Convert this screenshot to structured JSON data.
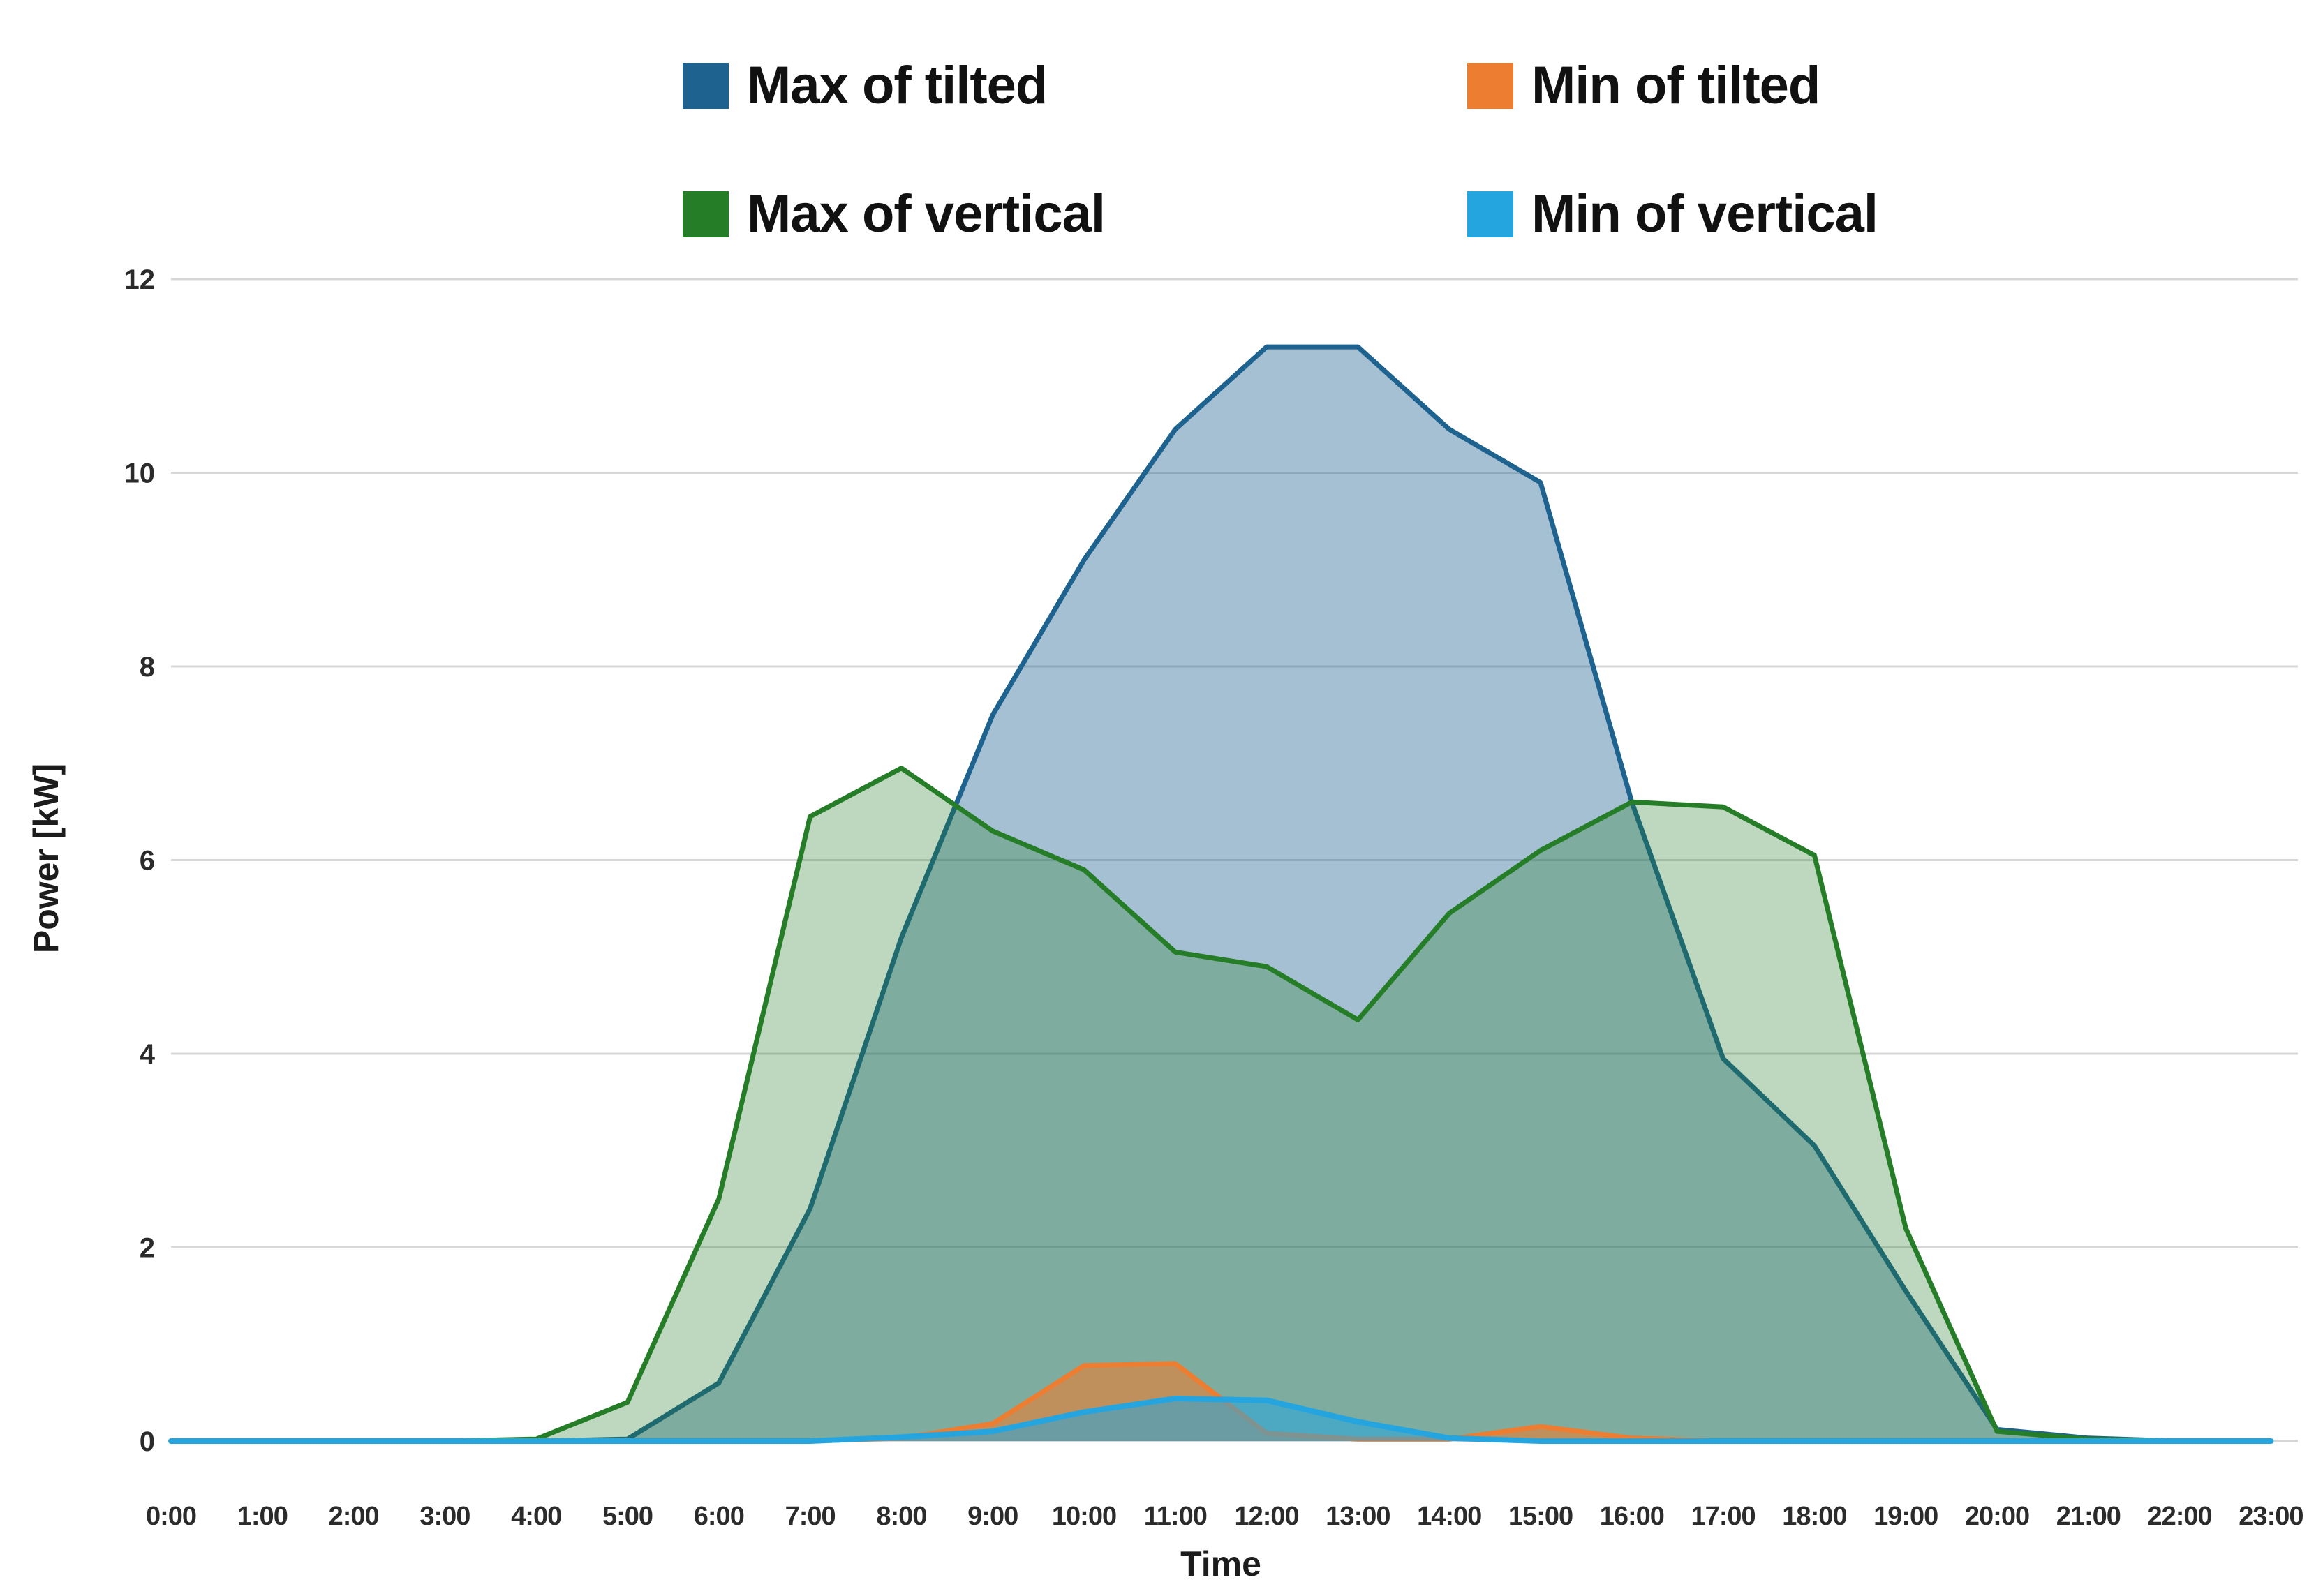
{
  "legend": {
    "items": [
      {
        "label": "Max of tilted",
        "color": "#1e628f"
      },
      {
        "label": "Min of tilted",
        "color": "#ed7d31"
      },
      {
        "label": "Max of vertical",
        "color": "#267d28"
      },
      {
        "label": "Min of vertical",
        "color": "#24a5e0"
      }
    ]
  },
  "chart_data": {
    "type": "area",
    "title": "",
    "xlabel": "Time",
    "ylabel": "Power [kW]",
    "x_categories": [
      "0:00",
      "1:00",
      "2:00",
      "3:00",
      "4:00",
      "5:00",
      "6:00",
      "7:00",
      "8:00",
      "9:00",
      "10:00",
      "11:00",
      "12:00",
      "13:00",
      "14:00",
      "15:00",
      "16:00",
      "17:00",
      "18:00",
      "19:00",
      "20:00",
      "21:00",
      "22:00",
      "23:00"
    ],
    "y_ticks": [
      0,
      2,
      4,
      6,
      8,
      10,
      12
    ],
    "ylim": [
      0,
      12
    ],
    "grid": true,
    "legend_position": "top",
    "series": [
      {
        "name": "Max of tilted",
        "color": "#1e628f",
        "fill_opacity": 0.4,
        "stroke_width": 7,
        "values": [
          0,
          0,
          0,
          0,
          0,
          0.02,
          0.6,
          2.4,
          5.2,
          7.5,
          9.1,
          10.45,
          11.3,
          11.3,
          10.45,
          9.9,
          6.6,
          3.95,
          3.05,
          1.55,
          0.12,
          0.03,
          0,
          0
        ]
      },
      {
        "name": "Max of vertical",
        "color": "#267d28",
        "fill_opacity": 0.3,
        "stroke_width": 7,
        "values": [
          0,
          0,
          0,
          0,
          0.02,
          0.4,
          2.5,
          6.45,
          6.95,
          6.3,
          5.9,
          5.05,
          4.9,
          4.35,
          5.45,
          6.1,
          6.6,
          6.55,
          6.05,
          2.2,
          0.1,
          0.02,
          0,
          0
        ]
      },
      {
        "name": "Min of tilted",
        "color": "#ed7d31",
        "fill_opacity": 0.6,
        "stroke_width": 7,
        "values": [
          0,
          0,
          0,
          0,
          0,
          0,
          0,
          0,
          0.03,
          0.18,
          0.78,
          0.8,
          0.08,
          0.02,
          0.02,
          0.15,
          0.03,
          0,
          0,
          0,
          0,
          0,
          0,
          0
        ]
      },
      {
        "name": "Min of vertical",
        "color": "#24a5e0",
        "fill_opacity": 0.55,
        "stroke_width": 8,
        "values": [
          0,
          0,
          0,
          0,
          0,
          0,
          0,
          0,
          0.04,
          0.1,
          0.3,
          0.44,
          0.42,
          0.2,
          0.03,
          0,
          0,
          0,
          0,
          0,
          0,
          0,
          0,
          0
        ]
      }
    ]
  }
}
